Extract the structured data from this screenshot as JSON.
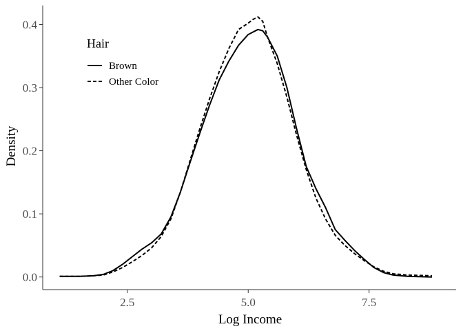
{
  "chart_data": {
    "type": "line",
    "title": "",
    "xlabel": "Log Income",
    "ylabel": "Density",
    "xlim": [
      0.75,
      9.3
    ],
    "ylim": [
      -0.02,
      0.43
    ],
    "x_ticks": [
      2.5,
      5.0,
      7.5
    ],
    "x_tick_labels": [
      "2.5",
      "5.0",
      "7.5"
    ],
    "y_ticks": [
      0.0,
      0.1,
      0.2,
      0.3,
      0.4
    ],
    "y_tick_labels": [
      "0.0",
      "0.1",
      "0.2",
      "0.3",
      "0.4"
    ],
    "grid": false,
    "legend": {
      "title": "Hair",
      "position": "top-left"
    },
    "series": [
      {
        "name": "Brown",
        "line_style": "solid",
        "color": "#000000",
        "points": [
          [
            1.1,
            0.001
          ],
          [
            1.5,
            0.001
          ],
          [
            1.8,
            0.002
          ],
          [
            2.0,
            0.004
          ],
          [
            2.2,
            0.01
          ],
          [
            2.4,
            0.02
          ],
          [
            2.6,
            0.032
          ],
          [
            2.8,
            0.044
          ],
          [
            3.0,
            0.054
          ],
          [
            3.2,
            0.068
          ],
          [
            3.4,
            0.095
          ],
          [
            3.6,
            0.135
          ],
          [
            3.8,
            0.182
          ],
          [
            4.0,
            0.228
          ],
          [
            4.2,
            0.272
          ],
          [
            4.4,
            0.312
          ],
          [
            4.6,
            0.342
          ],
          [
            4.8,
            0.367
          ],
          [
            5.0,
            0.384
          ],
          [
            5.2,
            0.392
          ],
          [
            5.3,
            0.39
          ],
          [
            5.4,
            0.38
          ],
          [
            5.6,
            0.35
          ],
          [
            5.8,
            0.3
          ],
          [
            6.0,
            0.235
          ],
          [
            6.2,
            0.175
          ],
          [
            6.4,
            0.14
          ],
          [
            6.6,
            0.11
          ],
          [
            6.8,
            0.075
          ],
          [
            7.0,
            0.058
          ],
          [
            7.2,
            0.042
          ],
          [
            7.4,
            0.028
          ],
          [
            7.6,
            0.015
          ],
          [
            7.8,
            0.007
          ],
          [
            8.0,
            0.003
          ],
          [
            8.3,
            0.001
          ],
          [
            8.8,
            0.0
          ]
        ]
      },
      {
        "name": "Other Color",
        "line_style": "dashed",
        "color": "#000000",
        "points": [
          [
            1.1,
            0.001
          ],
          [
            1.5,
            0.001
          ],
          [
            1.8,
            0.002
          ],
          [
            2.0,
            0.003
          ],
          [
            2.2,
            0.008
          ],
          [
            2.4,
            0.015
          ],
          [
            2.6,
            0.024
          ],
          [
            2.8,
            0.034
          ],
          [
            3.0,
            0.046
          ],
          [
            3.2,
            0.064
          ],
          [
            3.4,
            0.092
          ],
          [
            3.6,
            0.135
          ],
          [
            3.8,
            0.185
          ],
          [
            4.0,
            0.235
          ],
          [
            4.2,
            0.282
          ],
          [
            4.4,
            0.325
          ],
          [
            4.6,
            0.362
          ],
          [
            4.8,
            0.392
          ],
          [
            5.0,
            0.402
          ],
          [
            5.1,
            0.408
          ],
          [
            5.2,
            0.412
          ],
          [
            5.3,
            0.405
          ],
          [
            5.4,
            0.38
          ],
          [
            5.6,
            0.338
          ],
          [
            5.8,
            0.285
          ],
          [
            6.0,
            0.225
          ],
          [
            6.2,
            0.17
          ],
          [
            6.4,
            0.125
          ],
          [
            6.6,
            0.092
          ],
          [
            6.8,
            0.066
          ],
          [
            7.0,
            0.05
          ],
          [
            7.2,
            0.037
          ],
          [
            7.4,
            0.026
          ],
          [
            7.6,
            0.016
          ],
          [
            7.8,
            0.009
          ],
          [
            8.0,
            0.005
          ],
          [
            8.3,
            0.003
          ],
          [
            8.8,
            0.002
          ]
        ]
      }
    ]
  }
}
